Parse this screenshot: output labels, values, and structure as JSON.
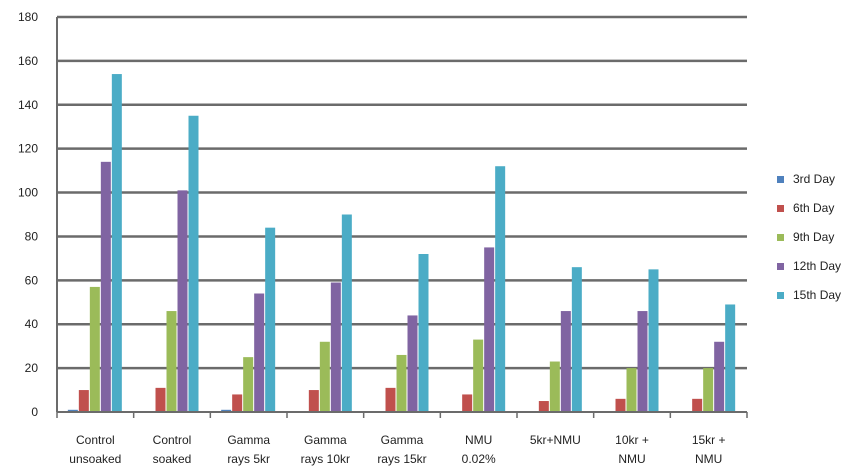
{
  "chart_data": {
    "type": "bar",
    "categories": [
      [
        "Control",
        "unsoaked"
      ],
      [
        "Control",
        "soaked"
      ],
      [
        "Gamma",
        "rays 5kr"
      ],
      [
        "Gamma",
        "rays 10kr"
      ],
      [
        "Gamma",
        "rays 15kr"
      ],
      [
        "NMU",
        "0.02%"
      ],
      [
        "5kr+NMU"
      ],
      [
        "10kr +",
        "NMU"
      ],
      [
        "15kr +",
        "NMU"
      ]
    ],
    "series": [
      {
        "name": "3rd Day",
        "color": "#4f81bd",
        "values": [
          1,
          0,
          1,
          0,
          0,
          0,
          0,
          0,
          0
        ]
      },
      {
        "name": "6th Day",
        "color": "#c0504d",
        "values": [
          10,
          11,
          8,
          10,
          11,
          8,
          5,
          6,
          6
        ]
      },
      {
        "name": "9th Day",
        "color": "#9bbb59",
        "values": [
          57,
          46,
          25,
          32,
          26,
          33,
          23,
          20,
          20
        ]
      },
      {
        "name": "12th Day",
        "color": "#8064a2",
        "values": [
          114,
          101,
          54,
          59,
          44,
          75,
          46,
          46,
          32
        ]
      },
      {
        "name": "15th Day",
        "color": "#4bacc6",
        "values": [
          154,
          135,
          84,
          90,
          72,
          112,
          66,
          65,
          49
        ]
      }
    ],
    "yticks": [
      "0",
      "20",
      "40",
      "60",
      "80",
      "100",
      "120",
      "140",
      "160",
      "180"
    ],
    "ylim": [
      0,
      180
    ],
    "grid": true,
    "legend_position": "right",
    "title": "",
    "xlabel": "",
    "ylabel": ""
  }
}
